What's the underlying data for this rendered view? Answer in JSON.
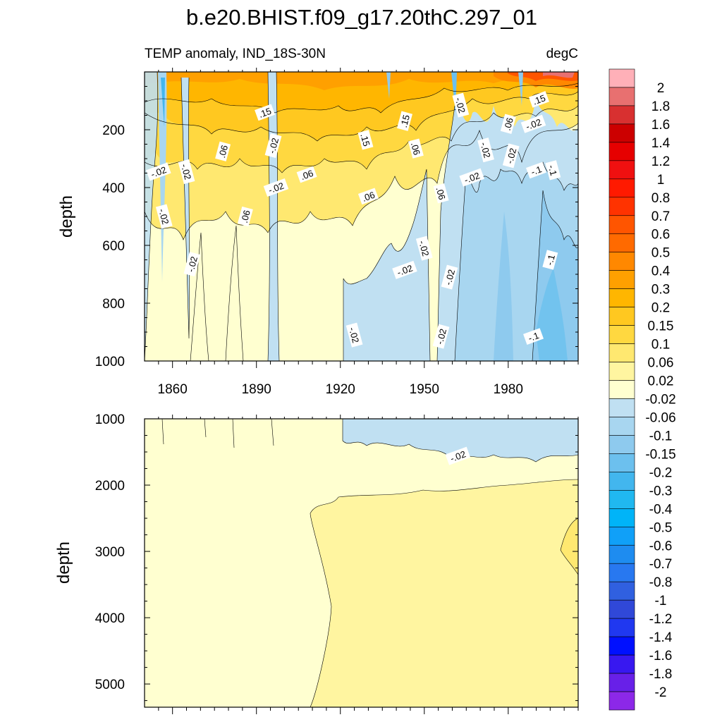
{
  "chart_data": {
    "type": "contour",
    "title": "b.e20.BHIST.f09_g17.20thC.297_01",
    "variable_label": "TEMP anomaly, IND_18S-30N",
    "units_label": "degC",
    "panels": [
      {
        "ylabel": "depth",
        "ylim": [
          0,
          1000
        ],
        "yreversed": true,
        "y_ticks": [
          "200",
          "400",
          "600",
          "800",
          "1000"
        ],
        "x_range": [
          1850,
          2005
        ],
        "x_ticks": [
          "1860",
          "1890",
          "1920",
          "1950",
          "1980"
        ],
        "contour_labels": [
          {
            "text": ".15",
            "x": 1893,
            "y": 140
          },
          {
            "text": ".15",
            "x": 1929,
            "y": 235
          },
          {
            "text": ".15",
            "x": 1943,
            "y": 170
          },
          {
            "text": ".15",
            "x": 1991,
            "y": 95
          },
          {
            "text": "-.02",
            "x": 1963,
            "y": 115
          },
          {
            "text": ".06",
            "x": 1878,
            "y": 275
          },
          {
            "text": ".06",
            "x": 1908,
            "y": 355
          },
          {
            "text": ".06",
            "x": 1947,
            "y": 265
          },
          {
            "text": ".06",
            "x": 1980,
            "y": 180
          },
          {
            "text": ".06",
            "x": 1930,
            "y": 430
          },
          {
            "text": ".06",
            "x": 1956,
            "y": 420
          },
          {
            "text": ".06",
            "x": 1886,
            "y": 500
          },
          {
            "text": "-.02",
            "x": 1855,
            "y": 345
          },
          {
            "text": "-.02",
            "x": 1865,
            "y": 345
          },
          {
            "text": "-.02",
            "x": 1896,
            "y": 255
          },
          {
            "text": "-.02",
            "x": 1897,
            "y": 400
          },
          {
            "text": "-.02",
            "x": 1857,
            "y": 500
          },
          {
            "text": "-.02",
            "x": 1867,
            "y": 665
          },
          {
            "text": "-.02",
            "x": 1943,
            "y": 685
          },
          {
            "text": "-.02",
            "x": 1950,
            "y": 610
          },
          {
            "text": "-.02",
            "x": 1959,
            "y": 710
          },
          {
            "text": "-.02",
            "x": 1967,
            "y": 365
          },
          {
            "text": "-.02",
            "x": 1972,
            "y": 270
          },
          {
            "text": "-.02",
            "x": 1981,
            "y": 290
          },
          {
            "text": "-.02",
            "x": 1989,
            "y": 180
          },
          {
            "text": "-.02",
            "x": 1925,
            "y": 910
          },
          {
            "text": "-.02",
            "x": 1956,
            "y": 915
          },
          {
            "text": "-.1",
            "x": 1990,
            "y": 340
          },
          {
            "text": "-.1",
            "x": 1996,
            "y": 340
          },
          {
            "text": "-.1",
            "x": 1995,
            "y": 650
          },
          {
            "text": "-.1",
            "x": 1989,
            "y": 915
          }
        ]
      },
      {
        "ylabel": "depth",
        "ylim": [
          1000,
          5350
        ],
        "yreversed": true,
        "y_ticks": [
          "1000",
          "2000",
          "3000",
          "4000",
          "5000"
        ],
        "x_range": [
          1850,
          2005
        ],
        "contour_labels": [
          {
            "text": "-.02",
            "x": 1962,
            "y": 1560
          }
        ]
      }
    ],
    "colorbar": {
      "levels": [
        "2",
        "1.8",
        "1.6",
        "1.4",
        "1.2",
        "1",
        "0.8",
        "0.7",
        "0.6",
        "0.5",
        "0.4",
        "0.3",
        "0.2",
        "0.15",
        "0.1",
        "0.06",
        "0.02",
        "-0.02",
        "-0.06",
        "-0.1",
        "-0.15",
        "-0.2",
        "-0.3",
        "-0.4",
        "-0.5",
        "-0.6",
        "-0.7",
        "-0.8",
        "-1",
        "-1.2",
        "-1.4",
        "-1.6",
        "-1.8",
        "-2"
      ],
      "colors": [
        "#FFB0B8",
        "#E87070",
        "#D83030",
        "#CC0000",
        "#E60000",
        "#F01010",
        "#FF1A00",
        "#FF3300",
        "#FF5500",
        "#FF6A00",
        "#FF8800",
        "#FFA000",
        "#FFB600",
        "#FFC820",
        "#FFD840",
        "#FFE870",
        "#FFF5A0",
        "#FFFFD0",
        "#C0E0F2",
        "#A8D6F0",
        "#8ECAEE",
        "#6CC0EE",
        "#42B6EE",
        "#20B8F0",
        "#00B4F8",
        "#10A0F8",
        "#1E8CF0",
        "#2878F0",
        "#3060E0",
        "#3048D8",
        "#2038F0",
        "#0010FF",
        "#3818F0",
        "#6820E8",
        "#8C28E8"
      ]
    }
  }
}
